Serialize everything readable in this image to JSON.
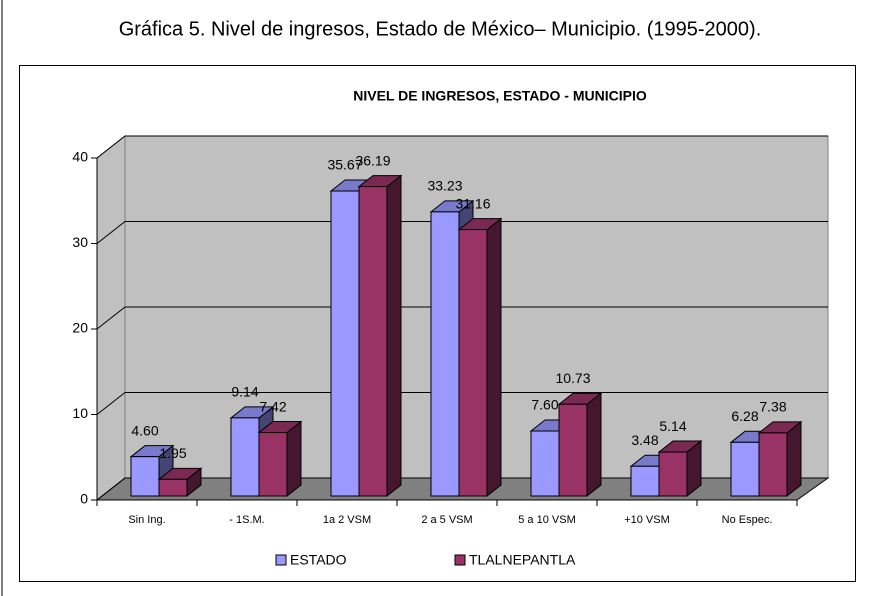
{
  "chart_data": {
    "type": "bar3d",
    "heading": "Gráfica 5.  Nivel de ingresos, Estado de México– Municipio. (1995-2000).",
    "title": "NIVEL DE INGRESOS, ESTADO - MUNICIPIO",
    "categories": [
      "Sin Ing.",
      "- 1S.M.",
      "1a 2 VSM",
      "2 a 5 VSM",
      "5 a 10 VSM",
      "+10 VSM",
      "No Espec."
    ],
    "series": [
      {
        "name": "ESTADO",
        "color": "#9999ff",
        "values": [
          4.6,
          9.14,
          35.67,
          33.23,
          7.6,
          3.48,
          6.28
        ],
        "value_labels": [
          "4.60",
          "9.14",
          "35.67",
          "33.23",
          "7.60",
          "3.48",
          "6.28"
        ]
      },
      {
        "name": "TLALNEPANTLA",
        "color": "#993366",
        "values": [
          1.95,
          7.42,
          36.19,
          31.16,
          10.73,
          5.14,
          7.38
        ],
        "value_labels": [
          "1.95",
          "7.42",
          "36.19",
          "31.16",
          "10.73",
          "5.14",
          "7.38"
        ]
      }
    ],
    "ylim": [
      0,
      40
    ],
    "yticks": [
      0,
      10,
      20,
      30,
      40
    ],
    "grid": true,
    "legend": "bottom"
  }
}
